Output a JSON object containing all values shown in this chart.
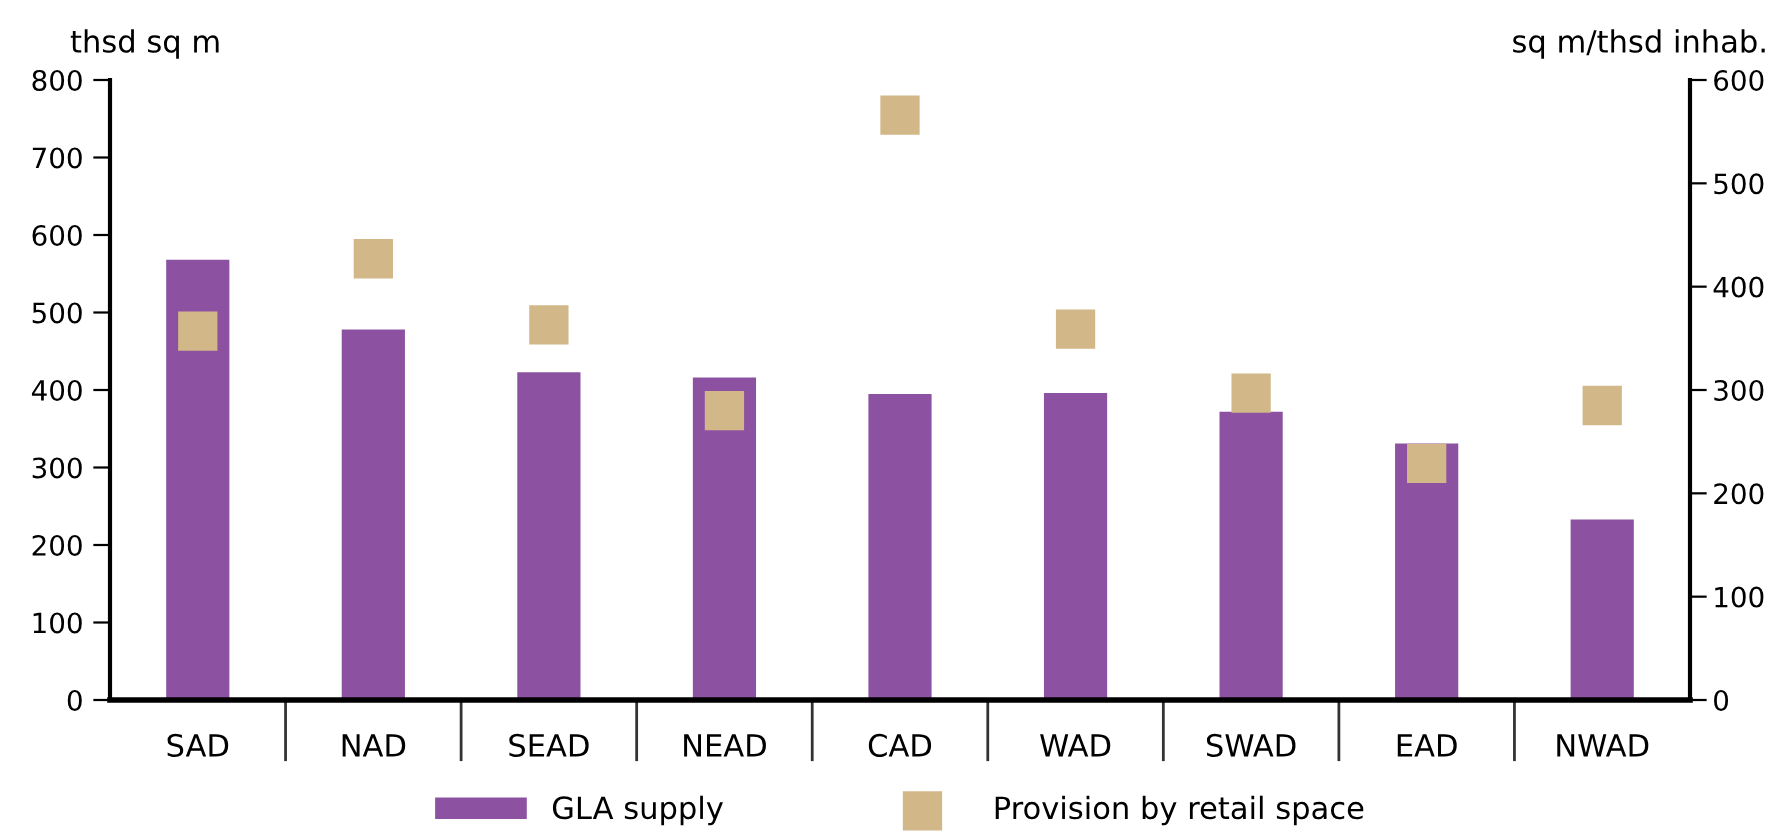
{
  "chart_data": {
    "type": "bar",
    "ylabel": "thsd sq m",
    "y2label": "sq m/thsd inhab.",
    "categories": [
      "SAD",
      "NAD",
      "SEAD",
      "NEAD",
      "CAD",
      "WAD",
      "SWAD",
      "EAD",
      "NWAD"
    ],
    "series": [
      {
        "name": "GLA supply",
        "color": "#8c52a1",
        "values": [
          568,
          478,
          423,
          416,
          395,
          396,
          372,
          331,
          233
        ]
      },
      {
        "name": "Provision by retail space",
        "type": "scatter",
        "axis": "y2",
        "marker": "square",
        "color": "#d2b789",
        "values": [
          357,
          427,
          363,
          280,
          566,
          359,
          297,
          229,
          285
        ]
      }
    ],
    "ylim": [
      0,
      800
    ],
    "yticks": [
      0,
      100,
      200,
      300,
      400,
      500,
      600,
      700,
      800
    ],
    "y2lim": [
      0,
      600
    ],
    "y2ticks": [
      0,
      100,
      200,
      300,
      400,
      500,
      600
    ],
    "grid": false,
    "legend": "bottom"
  }
}
